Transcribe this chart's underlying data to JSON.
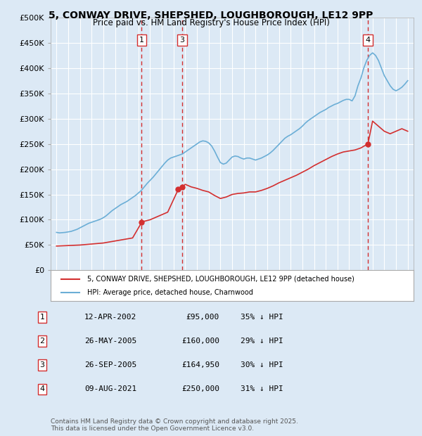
{
  "title": "5, CONWAY DRIVE, SHEPSHED, LOUGHBOROUGH, LE12 9PP",
  "subtitle": "Price paid vs. HM Land Registry's House Price Index (HPI)",
  "background_color": "#dce9f5",
  "plot_bg_color": "#dce9f5",
  "ylim": [
    0,
    500000
  ],
  "yticks": [
    0,
    50000,
    100000,
    150000,
    200000,
    250000,
    300000,
    350000,
    400000,
    450000,
    500000
  ],
  "ytick_labels": [
    "£0",
    "£50K",
    "£100K",
    "£150K",
    "£200K",
    "£250K",
    "£300K",
    "£350K",
    "£400K",
    "£450K",
    "£500K"
  ],
  "xlim_start": 1994.5,
  "xlim_end": 2025.5,
  "hpi_color": "#6baed6",
  "price_color": "#d32f2f",
  "sale_marker_color": "#d32f2f",
  "dashed_line_color": "#d32f2f",
  "sales": [
    {
      "num": 1,
      "year": 2002.28,
      "price": 95000,
      "label": "12-APR-2002",
      "pct": "35% ↓ HPI"
    },
    {
      "num": 2,
      "year": 2005.4,
      "price": 160000,
      "label": "26-MAY-2005",
      "pct": "29% ↓ HPI"
    },
    {
      "num": 3,
      "year": 2005.73,
      "price": 164950,
      "label": "26-SEP-2005",
      "pct": "30% ↓ HPI"
    },
    {
      "num": 4,
      "year": 2021.6,
      "price": 250000,
      "label": "09-AUG-2021",
      "pct": "31% ↓ HPI"
    }
  ],
  "legend_entries": [
    "5, CONWAY DRIVE, SHEPSHED, LOUGHBOROUGH, LE12 9PP (detached house)",
    "HPI: Average price, detached house, Charnwood"
  ],
  "footer_line1": "Contains HM Land Registry data © Crown copyright and database right 2025.",
  "footer_line2": "This data is licensed under the Open Government Licence v3.0.",
  "hpi_data": {
    "years": [
      1995.0,
      1995.25,
      1995.5,
      1995.75,
      1996.0,
      1996.25,
      1996.5,
      1996.75,
      1997.0,
      1997.25,
      1997.5,
      1997.75,
      1998.0,
      1998.25,
      1998.5,
      1998.75,
      1999.0,
      1999.25,
      1999.5,
      1999.75,
      2000.0,
      2000.25,
      2000.5,
      2000.75,
      2001.0,
      2001.25,
      2001.5,
      2001.75,
      2002.0,
      2002.25,
      2002.5,
      2002.75,
      2003.0,
      2003.25,
      2003.5,
      2003.75,
      2004.0,
      2004.25,
      2004.5,
      2004.75,
      2005.0,
      2005.25,
      2005.5,
      2005.75,
      2006.0,
      2006.25,
      2006.5,
      2006.75,
      2007.0,
      2007.25,
      2007.5,
      2007.75,
      2008.0,
      2008.25,
      2008.5,
      2008.75,
      2009.0,
      2009.25,
      2009.5,
      2009.75,
      2010.0,
      2010.25,
      2010.5,
      2010.75,
      2011.0,
      2011.25,
      2011.5,
      2011.75,
      2012.0,
      2012.25,
      2012.5,
      2012.75,
      2013.0,
      2013.25,
      2013.5,
      2013.75,
      2014.0,
      2014.25,
      2014.5,
      2014.75,
      2015.0,
      2015.25,
      2015.5,
      2015.75,
      2016.0,
      2016.25,
      2016.5,
      2016.75,
      2017.0,
      2017.25,
      2017.5,
      2017.75,
      2018.0,
      2018.25,
      2018.5,
      2018.75,
      2019.0,
      2019.25,
      2019.5,
      2019.75,
      2020.0,
      2020.25,
      2020.5,
      2020.75,
      2021.0,
      2021.25,
      2021.5,
      2021.75,
      2022.0,
      2022.25,
      2022.5,
      2022.75,
      2023.0,
      2023.25,
      2023.5,
      2023.75,
      2024.0,
      2024.25,
      2024.5,
      2024.75,
      2025.0
    ],
    "values": [
      75000,
      74000,
      74500,
      75000,
      76000,
      77000,
      79000,
      81000,
      84000,
      87000,
      90000,
      93000,
      95000,
      97000,
      99000,
      101000,
      104000,
      108000,
      113000,
      118000,
      122000,
      126000,
      130000,
      133000,
      136000,
      140000,
      144000,
      148000,
      153000,
      158000,
      165000,
      172000,
      178000,
      184000,
      191000,
      198000,
      205000,
      212000,
      218000,
      222000,
      224000,
      226000,
      228000,
      230000,
      234000,
      238000,
      242000,
      246000,
      250000,
      254000,
      256000,
      255000,
      252000,
      246000,
      236000,
      224000,
      213000,
      210000,
      212000,
      218000,
      224000,
      226000,
      225000,
      222000,
      220000,
      222000,
      222000,
      220000,
      218000,
      220000,
      222000,
      225000,
      228000,
      232000,
      237000,
      243000,
      249000,
      255000,
      261000,
      265000,
      268000,
      272000,
      276000,
      280000,
      285000,
      291000,
      296000,
      300000,
      304000,
      308000,
      312000,
      315000,
      318000,
      322000,
      325000,
      328000,
      330000,
      333000,
      336000,
      338000,
      338000,
      335000,
      345000,
      365000,
      380000,
      400000,
      415000,
      425000,
      430000,
      425000,
      415000,
      400000,
      385000,
      375000,
      365000,
      358000,
      355000,
      358000,
      362000,
      368000,
      375000
    ]
  },
  "price_data": {
    "years": [
      1995.0,
      1995.5,
      1996.0,
      1996.5,
      1997.0,
      1997.5,
      1998.0,
      1998.5,
      1999.0,
      1999.5,
      2000.0,
      2000.5,
      2001.0,
      2001.5,
      2002.28,
      2002.5,
      2003.0,
      2003.5,
      2004.0,
      2004.5,
      2005.4,
      2005.73,
      2006.0,
      2006.5,
      2007.0,
      2007.5,
      2008.0,
      2008.5,
      2009.0,
      2009.5,
      2010.0,
      2010.5,
      2011.0,
      2011.5,
      2012.0,
      2012.5,
      2013.0,
      2013.5,
      2014.0,
      2014.5,
      2015.0,
      2015.5,
      2016.0,
      2016.5,
      2017.0,
      2017.5,
      2018.0,
      2018.5,
      2019.0,
      2019.5,
      2020.0,
      2020.5,
      2021.0,
      2021.6,
      2022.0,
      2022.5,
      2023.0,
      2023.5,
      2024.0,
      2024.5,
      2025.0
    ],
    "values": [
      48000,
      48500,
      49000,
      49500,
      50000,
      51000,
      52000,
      53000,
      54000,
      56000,
      58000,
      60000,
      62000,
      64000,
      95000,
      97000,
      100000,
      105000,
      110000,
      115000,
      160000,
      164950,
      170000,
      165000,
      162000,
      158000,
      155000,
      148000,
      142000,
      145000,
      150000,
      152000,
      153000,
      155000,
      155000,
      158000,
      162000,
      167000,
      173000,
      178000,
      183000,
      188000,
      194000,
      200000,
      207000,
      213000,
      219000,
      225000,
      230000,
      234000,
      236000,
      238000,
      242000,
      250000,
      295000,
      285000,
      275000,
      270000,
      275000,
      280000,
      275000
    ]
  }
}
